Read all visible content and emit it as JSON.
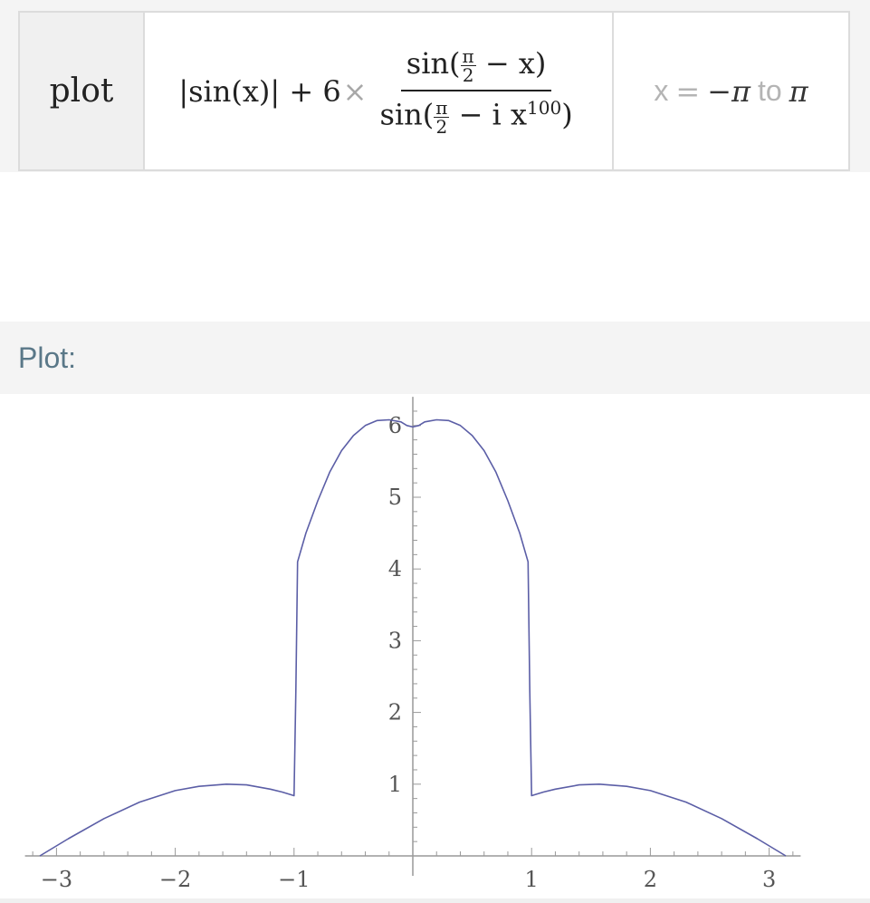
{
  "input": {
    "keyword": "plot",
    "formula": {
      "prefix": "|sin(x)| + 6",
      "times": "×",
      "num_open": "sin(",
      "num_close": " − x)",
      "den_open": "sin(",
      "den_middle": " − i x",
      "den_exp": "100",
      "den_close": ")",
      "pi": "π",
      "two": "2"
    },
    "range": {
      "variable": "x",
      "equals": "=",
      "from": "−π",
      "to_word": "to",
      "to": "π"
    }
  },
  "plot_section": {
    "label": "Plot:"
  },
  "chart_data": {
    "type": "line",
    "title": "",
    "xlabel": "",
    "ylabel": "",
    "xlim": [
      -3.25,
      3.25
    ],
    "ylim": [
      -0.05,
      6.4
    ],
    "x_ticks": [
      -3,
      -2,
      -1,
      1,
      2,
      3
    ],
    "x_tick_labels": [
      "−3",
      "−2",
      "−1",
      "1",
      "2",
      "3"
    ],
    "y_ticks": [
      1,
      2,
      3,
      4,
      5,
      6
    ],
    "y_tick_labels": [
      "1",
      "2",
      "3",
      "4",
      "5",
      "6"
    ],
    "grid": false,
    "line_color": "#5b5ea6",
    "series": [
      {
        "x": [
          -3.14,
          -2.9,
          -2.6,
          -2.3,
          -2.0,
          -1.8,
          -1.57,
          -1.4,
          -1.2,
          -1.1,
          -1.0,
          -0.985,
          -0.97,
          -0.9,
          -0.8,
          -0.7,
          -0.6,
          -0.5,
          -0.4,
          -0.3,
          -0.2,
          -0.1,
          -0.05,
          0.0,
          0.05,
          0.1,
          0.2,
          0.3,
          0.4,
          0.5,
          0.6,
          0.7,
          0.8,
          0.9,
          0.97,
          0.985,
          1.0,
          1.1,
          1.2,
          1.4,
          1.57,
          1.8,
          2.0,
          2.3,
          2.6,
          2.9,
          3.14
        ],
        "y": [
          0.0,
          0.24,
          0.52,
          0.75,
          0.91,
          0.97,
          1.0,
          0.99,
          0.93,
          0.89,
          0.84,
          2.3,
          4.1,
          4.5,
          4.95,
          5.35,
          5.65,
          5.86,
          6.0,
          6.07,
          6.08,
          6.05,
          6.0,
          5.98,
          6.0,
          6.05,
          6.08,
          6.07,
          6.0,
          5.86,
          5.65,
          5.35,
          4.95,
          4.5,
          4.1,
          2.3,
          0.84,
          0.89,
          0.93,
          0.99,
          1.0,
          0.97,
          0.91,
          0.75,
          0.52,
          0.24,
          0.0
        ]
      }
    ]
  }
}
